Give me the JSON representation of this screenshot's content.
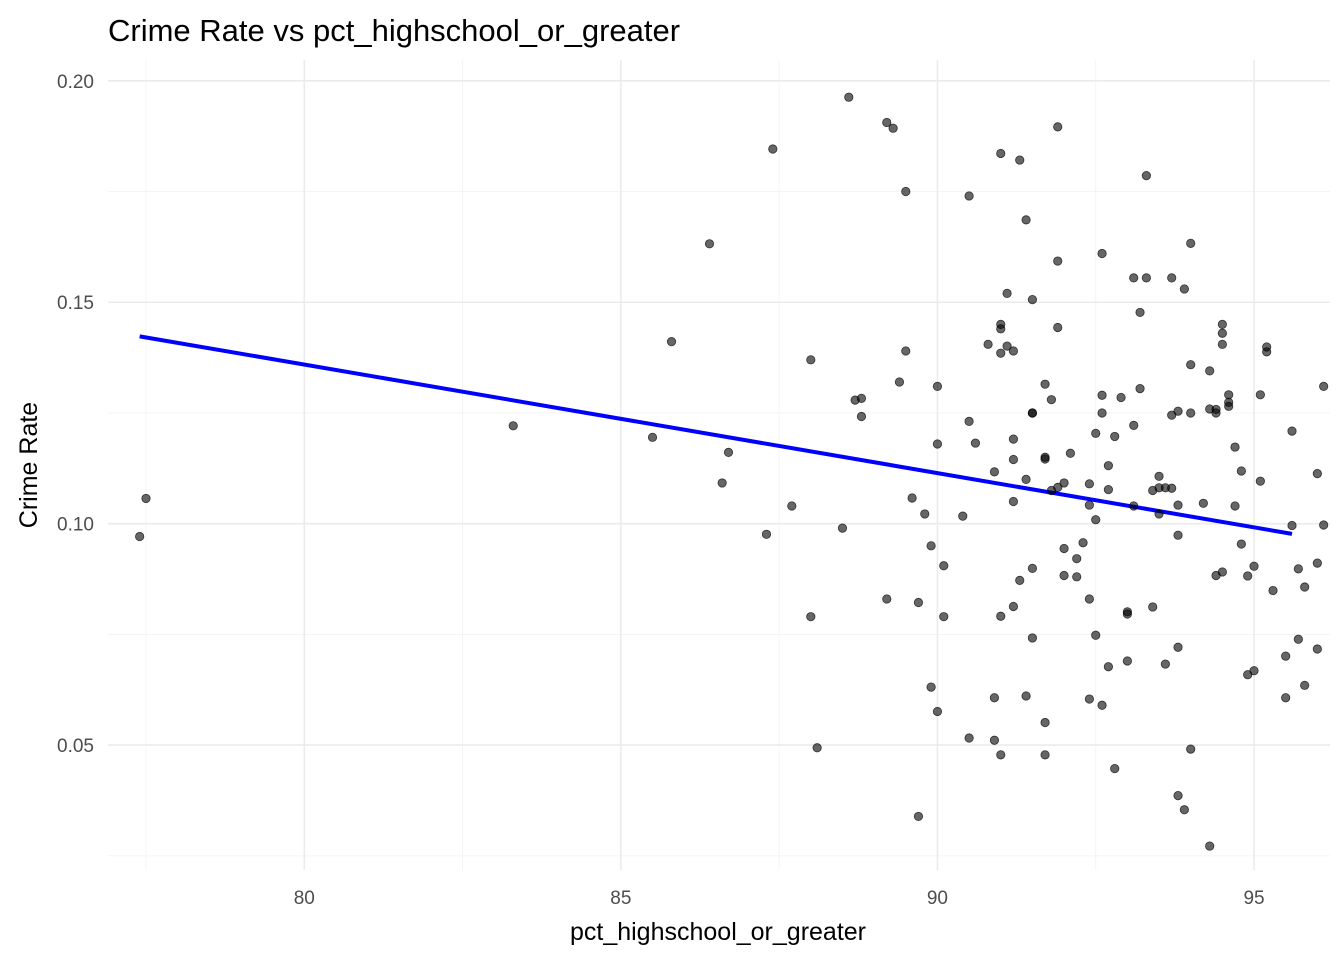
{
  "chart_data": {
    "type": "scatter",
    "title": "Crime Rate vs pct_highschool_or_greater",
    "xlabel": "pct_highschool_or_greater",
    "ylabel": "Crime Rate",
    "xlim": [
      76.9,
      96.2
    ],
    "ylim": [
      0.0218,
      0.2047
    ],
    "x_ticks": [
      80,
      85,
      90,
      95
    ],
    "y_ticks": [
      0.05,
      0.1,
      0.15,
      0.2
    ],
    "x_tick_labels": [
      "80",
      "85",
      "90",
      "95"
    ],
    "y_tick_labels": [
      "0.05",
      "0.10",
      "0.15",
      "0.20"
    ],
    "grid": true,
    "point_color": "#000000",
    "trend_color": "#0000ff",
    "trend_line": {
      "x": [
        77.4,
        95.6
      ],
      "y": [
        0.1423,
        0.0977
      ]
    },
    "points": [
      [
        77.4,
        0.0971
      ],
      [
        77.5,
        0.1057
      ],
      [
        83.3,
        0.1221
      ],
      [
        85.5,
        0.1195
      ],
      [
        85.8,
        0.1411
      ],
      [
        86.4,
        0.1632
      ],
      [
        86.6,
        0.1092
      ],
      [
        86.7,
        0.1161
      ],
      [
        87.3,
        0.0976
      ],
      [
        87.4,
        0.1846
      ],
      [
        87.7,
        0.104
      ],
      [
        88.0,
        0.137
      ],
      [
        88.0,
        0.079
      ],
      [
        88.1,
        0.0494
      ],
      [
        88.5,
        0.099
      ],
      [
        88.6,
        0.1963
      ],
      [
        88.7,
        0.1279
      ],
      [
        88.8,
        0.1242
      ],
      [
        88.8,
        0.1283
      ],
      [
        89.2,
        0.1906
      ],
      [
        89.2,
        0.083
      ],
      [
        89.3,
        0.1893
      ],
      [
        89.4,
        0.132
      ],
      [
        89.5,
        0.175
      ],
      [
        89.5,
        0.139
      ],
      [
        89.6,
        0.1058
      ],
      [
        89.7,
        0.0339
      ],
      [
        89.7,
        0.0822
      ],
      [
        89.8,
        0.1022
      ],
      [
        89.9,
        0.0631
      ],
      [
        89.9,
        0.095
      ],
      [
        90.0,
        0.118
      ],
      [
        90.0,
        0.131
      ],
      [
        90.0,
        0.0576
      ],
      [
        90.1,
        0.079
      ],
      [
        90.1,
        0.0905
      ],
      [
        90.4,
        0.1017
      ],
      [
        90.5,
        0.174
      ],
      [
        90.5,
        0.1231
      ],
      [
        90.5,
        0.0516
      ],
      [
        90.6,
        0.1182
      ],
      [
        90.8,
        0.1405
      ],
      [
        90.9,
        0.0607
      ],
      [
        90.9,
        0.1117
      ],
      [
        90.9,
        0.0511
      ],
      [
        91.0,
        0.144
      ],
      [
        91.0,
        0.1385
      ],
      [
        91.0,
        0.1836
      ],
      [
        91.0,
        0.0791
      ],
      [
        91.0,
        0.145
      ],
      [
        91.0,
        0.0478
      ],
      [
        91.1,
        0.152
      ],
      [
        91.1,
        0.1401
      ],
      [
        91.2,
        0.139
      ],
      [
        91.2,
        0.1191
      ],
      [
        91.2,
        0.1145
      ],
      [
        91.2,
        0.105
      ],
      [
        91.2,
        0.0813
      ],
      [
        91.3,
        0.0872
      ],
      [
        91.3,
        0.1821
      ],
      [
        91.4,
        0.11
      ],
      [
        91.4,
        0.1686
      ],
      [
        91.4,
        0.0611
      ],
      [
        91.5,
        0.1506
      ],
      [
        91.5,
        0.125
      ],
      [
        91.5,
        0.125
      ],
      [
        91.5,
        0.0899
      ],
      [
        91.5,
        0.0742
      ],
      [
        91.7,
        0.1315
      ],
      [
        91.7,
        0.115
      ],
      [
        91.7,
        0.1146
      ],
      [
        91.7,
        0.0551
      ],
      [
        91.7,
        0.0478
      ],
      [
        91.8,
        0.128
      ],
      [
        91.8,
        0.1075
      ],
      [
        91.9,
        0.1443
      ],
      [
        91.9,
        0.1593
      ],
      [
        91.9,
        0.1896
      ],
      [
        91.9,
        0.1082
      ],
      [
        92.0,
        0.1092
      ],
      [
        92.0,
        0.0944
      ],
      [
        92.0,
        0.0883
      ],
      [
        92.1,
        0.1159
      ],
      [
        92.2,
        0.0921
      ],
      [
        92.2,
        0.088
      ],
      [
        92.3,
        0.0957
      ],
      [
        92.4,
        0.1042
      ],
      [
        92.4,
        0.109
      ],
      [
        92.4,
        0.083
      ],
      [
        92.4,
        0.0604
      ],
      [
        92.5,
        0.1009
      ],
      [
        92.5,
        0.1204
      ],
      [
        92.5,
        0.0748
      ],
      [
        92.6,
        0.129
      ],
      [
        92.6,
        0.125
      ],
      [
        92.6,
        0.161
      ],
      [
        92.6,
        0.059
      ],
      [
        92.7,
        0.1131
      ],
      [
        92.7,
        0.1077
      ],
      [
        92.7,
        0.0677
      ],
      [
        92.8,
        0.0447
      ],
      [
        92.8,
        0.1197
      ],
      [
        92.9,
        0.1285
      ],
      [
        93.0,
        0.0796
      ],
      [
        93.0,
        0.0801
      ],
      [
        93.0,
        0.069
      ],
      [
        93.1,
        0.1222
      ],
      [
        93.1,
        0.104
      ],
      [
        93.1,
        0.1555
      ],
      [
        93.2,
        0.1305
      ],
      [
        93.2,
        0.1477
      ],
      [
        93.3,
        0.1555
      ],
      [
        93.3,
        0.1786
      ],
      [
        93.4,
        0.0812
      ],
      [
        93.4,
        0.1075
      ],
      [
        93.5,
        0.1107
      ],
      [
        93.5,
        0.1081
      ],
      [
        93.5,
        0.1022
      ],
      [
        93.6,
        0.1081
      ],
      [
        93.6,
        0.0683
      ],
      [
        93.7,
        0.1555
      ],
      [
        93.7,
        0.1245
      ],
      [
        93.7,
        0.108
      ],
      [
        93.8,
        0.1254
      ],
      [
        93.8,
        0.1042
      ],
      [
        93.8,
        0.0974
      ],
      [
        93.8,
        0.0721
      ],
      [
        93.8,
        0.0386
      ],
      [
        93.9,
        0.153
      ],
      [
        93.9,
        0.0354
      ],
      [
        94.0,
        0.1633
      ],
      [
        94.0,
        0.125
      ],
      [
        94.0,
        0.1359
      ],
      [
        94.0,
        0.0491
      ],
      [
        94.2,
        0.1046
      ],
      [
        94.3,
        0.1345
      ],
      [
        94.3,
        0.1259
      ],
      [
        94.4,
        0.0883
      ],
      [
        94.4,
        0.125
      ],
      [
        94.4,
        0.1258
      ],
      [
        94.5,
        0.145
      ],
      [
        94.5,
        0.143
      ],
      [
        94.5,
        0.1405
      ],
      [
        94.5,
        0.0891
      ],
      [
        94.3,
        0.0272
      ],
      [
        94.6,
        0.1291
      ],
      [
        94.6,
        0.1274
      ],
      [
        94.6,
        0.1265
      ],
      [
        94.7,
        0.1173
      ],
      [
        94.7,
        0.104
      ],
      [
        94.8,
        0.1119
      ],
      [
        94.8,
        0.0954
      ],
      [
        94.9,
        0.0882
      ],
      [
        94.9,
        0.0659
      ],
      [
        95.0,
        0.0668
      ],
      [
        95.0,
        0.0904
      ],
      [
        95.1,
        0.1291
      ],
      [
        95.1,
        0.1096
      ],
      [
        95.2,
        0.1399
      ],
      [
        95.2,
        0.1388
      ],
      [
        95.3,
        0.0849
      ],
      [
        95.5,
        0.0607
      ],
      [
        95.5,
        0.0701
      ],
      [
        95.6,
        0.1209
      ],
      [
        95.6,
        0.0996
      ],
      [
        95.7,
        0.0898
      ],
      [
        95.7,
        0.0739
      ],
      [
        95.8,
        0.0635
      ],
      [
        95.8,
        0.0857
      ],
      [
        96.0,
        0.0911
      ],
      [
        96.0,
        0.0717
      ],
      [
        96.0,
        0.1113
      ],
      [
        96.1,
        0.131
      ],
      [
        96.1,
        0.0997
      ]
    ]
  }
}
